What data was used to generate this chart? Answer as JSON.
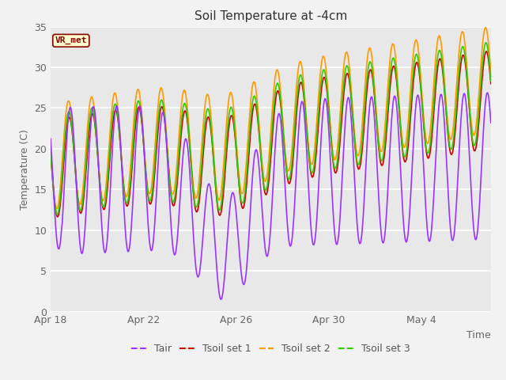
{
  "title": "Soil Temperature at -4cm",
  "xlabel": "Time",
  "ylabel": "Temperature (C)",
  "ylim": [
    0,
    35
  ],
  "background_color": "#f2f2f2",
  "plot_bg_color": "#e8e8e8",
  "grid_color": "#ffffff",
  "colors": {
    "Tair": "#9933ff",
    "Tsoil1": "#cc0000",
    "Tsoil2": "#ff9900",
    "Tsoil3": "#33cc00"
  },
  "annotation_text": "VR_met",
  "annotation_color": "#880000",
  "annotation_bg": "#ffffcc",
  "x_tick_labels": [
    "Apr 18",
    "Apr 22",
    "Apr 26",
    "Apr 30",
    "May 4"
  ],
  "x_tick_positions": [
    0,
    4,
    8,
    12,
    16
  ],
  "y_ticks": [
    0,
    5,
    10,
    15,
    20,
    25,
    30,
    35
  ],
  "line_width": 1.2,
  "n_days": 19
}
